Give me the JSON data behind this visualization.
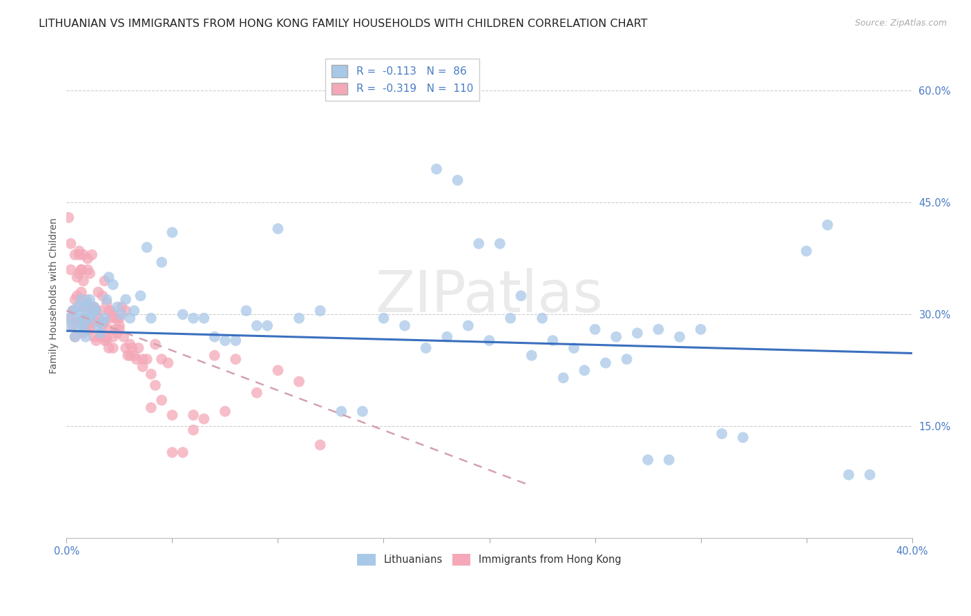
{
  "title": "LITHUANIAN VS IMMIGRANTS FROM HONG KONG FAMILY HOUSEHOLDS WITH CHILDREN CORRELATION CHART",
  "source": "Source: ZipAtlas.com",
  "ylabel": "Family Households with Children",
  "xlim": [
    0.0,
    0.4
  ],
  "ylim": [
    0.0,
    0.65
  ],
  "xticks": [
    0.0,
    0.4
  ],
  "xticklabels": [
    "0.0%",
    "40.0%"
  ],
  "yticks": [
    0.15,
    0.3,
    0.45,
    0.6
  ],
  "yticklabels": [
    "15.0%",
    "30.0%",
    "45.0%",
    "60.0%"
  ],
  "legend_labels": [
    "Lithuanians",
    "Immigrants from Hong Kong"
  ],
  "blue_R": "-0.113",
  "blue_N": "86",
  "pink_R": "-0.319",
  "pink_N": "110",
  "blue_color": "#a8c8e8",
  "pink_color": "#f4a8b8",
  "blue_line_color": "#3a6fbf",
  "pink_line_color": "#d4a0b0",
  "watermark": "ZIPatlas",
  "title_fontsize": 11.5,
  "axis_label_fontsize": 10,
  "tick_fontsize": 10.5,
  "source_fontsize": 9,
  "legend_fontsize": 11,
  "blue_trend_start_y": 0.278,
  "blue_trend_end_y": 0.248,
  "pink_trend_start_y": 0.305,
  "pink_trend_end_y": 0.07,
  "pink_trend_end_x": 0.22,
  "blue_scatter_x": [
    0.001,
    0.002,
    0.003,
    0.004,
    0.005,
    0.005,
    0.006,
    0.006,
    0.007,
    0.007,
    0.008,
    0.008,
    0.009,
    0.009,
    0.01,
    0.01,
    0.011,
    0.011,
    0.012,
    0.013,
    0.014,
    0.015,
    0.016,
    0.017,
    0.018,
    0.019,
    0.02,
    0.022,
    0.024,
    0.026,
    0.028,
    0.03,
    0.032,
    0.035,
    0.038,
    0.04,
    0.045,
    0.05,
    0.055,
    0.06,
    0.065,
    0.07,
    0.075,
    0.08,
    0.085,
    0.09,
    0.095,
    0.1,
    0.11,
    0.12,
    0.13,
    0.14,
    0.15,
    0.16,
    0.17,
    0.18,
    0.19,
    0.2,
    0.21,
    0.22,
    0.23,
    0.24,
    0.25,
    0.26,
    0.27,
    0.28,
    0.29,
    0.3,
    0.31,
    0.32,
    0.175,
    0.185,
    0.195,
    0.205,
    0.215,
    0.225,
    0.235,
    0.245,
    0.255,
    0.265,
    0.275,
    0.285,
    0.35,
    0.36,
    0.37,
    0.38
  ],
  "blue_scatter_y": [
    0.295,
    0.285,
    0.305,
    0.27,
    0.29,
    0.31,
    0.28,
    0.3,
    0.295,
    0.32,
    0.31,
    0.28,
    0.29,
    0.27,
    0.3,
    0.315,
    0.295,
    0.32,
    0.3,
    0.31,
    0.305,
    0.285,
    0.275,
    0.29,
    0.295,
    0.32,
    0.35,
    0.34,
    0.31,
    0.3,
    0.32,
    0.295,
    0.305,
    0.325,
    0.39,
    0.295,
    0.37,
    0.41,
    0.3,
    0.295,
    0.295,
    0.27,
    0.265,
    0.265,
    0.305,
    0.285,
    0.285,
    0.415,
    0.295,
    0.305,
    0.17,
    0.17,
    0.295,
    0.285,
    0.255,
    0.27,
    0.285,
    0.265,
    0.295,
    0.245,
    0.265,
    0.255,
    0.28,
    0.27,
    0.275,
    0.28,
    0.27,
    0.28,
    0.14,
    0.135,
    0.495,
    0.48,
    0.395,
    0.395,
    0.325,
    0.295,
    0.215,
    0.225,
    0.235,
    0.24,
    0.105,
    0.105,
    0.385,
    0.42,
    0.085,
    0.085
  ],
  "pink_scatter_x": [
    0.001,
    0.002,
    0.002,
    0.003,
    0.003,
    0.004,
    0.004,
    0.005,
    0.005,
    0.006,
    0.006,
    0.006,
    0.007,
    0.007,
    0.007,
    0.008,
    0.008,
    0.008,
    0.009,
    0.009,
    0.009,
    0.01,
    0.01,
    0.01,
    0.011,
    0.011,
    0.011,
    0.012,
    0.012,
    0.013,
    0.013,
    0.014,
    0.014,
    0.015,
    0.015,
    0.016,
    0.016,
    0.017,
    0.017,
    0.018,
    0.018,
    0.019,
    0.019,
    0.02,
    0.02,
    0.021,
    0.021,
    0.022,
    0.022,
    0.023,
    0.023,
    0.024,
    0.024,
    0.025,
    0.025,
    0.026,
    0.027,
    0.028,
    0.029,
    0.03,
    0.031,
    0.032,
    0.034,
    0.036,
    0.038,
    0.04,
    0.042,
    0.045,
    0.048,
    0.05,
    0.055,
    0.06,
    0.065,
    0.07,
    0.075,
    0.08,
    0.09,
    0.1,
    0.11,
    0.12,
    0.002,
    0.003,
    0.004,
    0.005,
    0.006,
    0.007,
    0.008,
    0.009,
    0.01,
    0.011,
    0.012,
    0.013,
    0.014,
    0.015,
    0.016,
    0.017,
    0.018,
    0.019,
    0.02,
    0.022,
    0.025,
    0.028,
    0.03,
    0.033,
    0.036,
    0.04,
    0.042,
    0.045,
    0.05,
    0.06
  ],
  "pink_scatter_y": [
    0.43,
    0.395,
    0.36,
    0.305,
    0.285,
    0.32,
    0.38,
    0.35,
    0.325,
    0.355,
    0.31,
    0.385,
    0.33,
    0.29,
    0.36,
    0.31,
    0.345,
    0.38,
    0.28,
    0.32,
    0.295,
    0.375,
    0.36,
    0.29,
    0.28,
    0.355,
    0.31,
    0.38,
    0.295,
    0.27,
    0.31,
    0.305,
    0.305,
    0.33,
    0.29,
    0.27,
    0.305,
    0.325,
    0.27,
    0.345,
    0.29,
    0.315,
    0.27,
    0.305,
    0.28,
    0.305,
    0.295,
    0.3,
    0.27,
    0.295,
    0.28,
    0.295,
    0.275,
    0.295,
    0.28,
    0.31,
    0.27,
    0.305,
    0.245,
    0.26,
    0.255,
    0.245,
    0.255,
    0.24,
    0.24,
    0.175,
    0.26,
    0.24,
    0.235,
    0.115,
    0.115,
    0.165,
    0.16,
    0.245,
    0.17,
    0.24,
    0.195,
    0.225,
    0.21,
    0.125,
    0.295,
    0.305,
    0.27,
    0.29,
    0.38,
    0.36,
    0.275,
    0.285,
    0.295,
    0.28,
    0.305,
    0.29,
    0.265,
    0.295,
    0.275,
    0.285,
    0.265,
    0.265,
    0.255,
    0.255,
    0.285,
    0.255,
    0.245,
    0.24,
    0.23,
    0.22,
    0.205,
    0.185,
    0.165,
    0.145
  ]
}
